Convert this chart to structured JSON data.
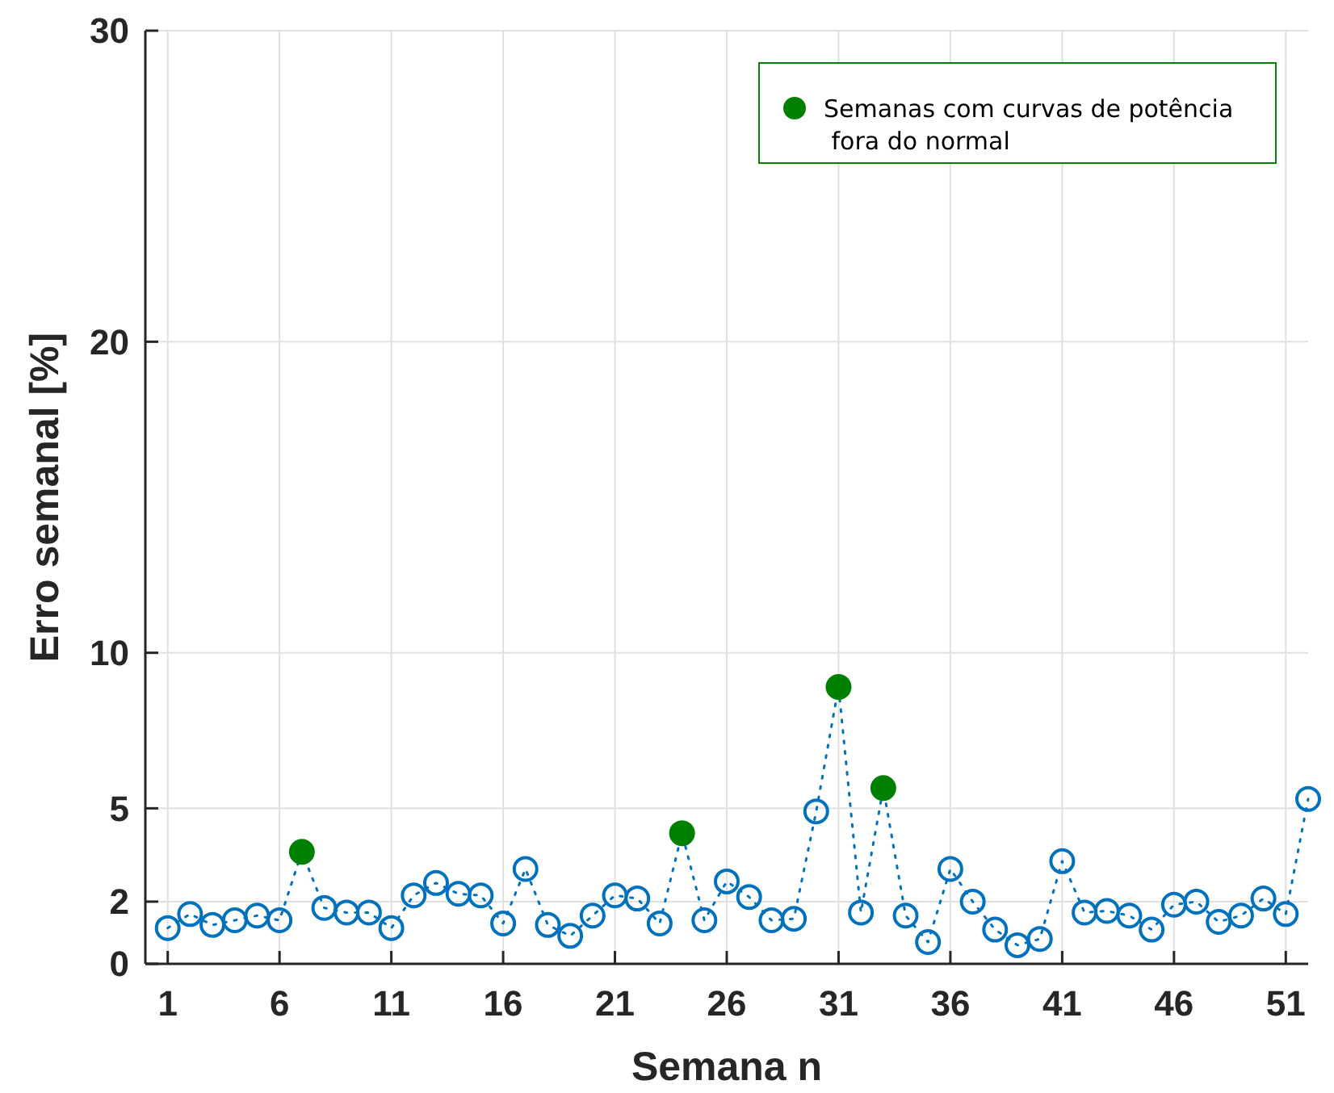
{
  "chart_data": {
    "type": "line",
    "xlabel": "Semana n",
    "ylabel": "Erro semanal [%]",
    "xlim": [
      0,
      52
    ],
    "xticks": [
      1,
      6,
      11,
      16,
      21,
      26,
      31,
      36,
      41,
      46,
      51
    ],
    "ylim": [
      0,
      30
    ],
    "yticks": [
      0,
      2,
      5,
      10,
      20,
      30
    ],
    "grid": true,
    "legend": "top right",
    "series": [
      {
        "color": "#0072bd",
        "marker": "none",
        "line_style": "dotted",
        "x": [
          1,
          2,
          3,
          4,
          5,
          6,
          7,
          8,
          9,
          10,
          11,
          12,
          13,
          14,
          15,
          16,
          17,
          18,
          19,
          20,
          21,
          22,
          23,
          24,
          25,
          26,
          27,
          28,
          29,
          30,
          31,
          32,
          33,
          34,
          35,
          36,
          37,
          38,
          39,
          40,
          41,
          42,
          43,
          44,
          45,
          46,
          47,
          48,
          49,
          50,
          51,
          52
        ],
        "values": [
          1.15,
          1.6,
          1.25,
          1.4,
          1.55,
          1.4,
          3.6,
          1.8,
          1.65,
          1.65,
          1.15,
          2.2,
          2.6,
          2.25,
          2.2,
          1.3,
          3.05,
          1.25,
          0.9,
          1.55,
          2.2,
          2.1,
          1.3,
          4.2,
          1.4,
          2.65,
          2.15,
          1.4,
          1.45,
          4.9,
          8.9,
          1.65,
          5.65,
          1.55,
          0.7,
          3.05,
          2.0,
          1.1,
          0.6,
          0.8,
          3.3,
          1.65,
          1.7,
          1.55,
          1.1,
          1.9,
          2.0,
          1.35,
          1.55,
          2.1,
          1.6,
          5.3
        ]
      },
      {
        "type": "scatter",
        "color": "#0072bd",
        "marker": "circle",
        "x": [
          1,
          2,
          3,
          4,
          5,
          6,
          8,
          9,
          10,
          11,
          12,
          13,
          14,
          15,
          16,
          17,
          18,
          19,
          20,
          21,
          22,
          23,
          25,
          26,
          27,
          28,
          29,
          30,
          32,
          34,
          35,
          36,
          37,
          38,
          39,
          40,
          41,
          42,
          43,
          44,
          45,
          46,
          47,
          48,
          49,
          50,
          51,
          52
        ],
        "values": [
          1.15,
          1.6,
          1.25,
          1.4,
          1.55,
          1.4,
          1.8,
          1.65,
          1.65,
          1.15,
          2.2,
          2.6,
          2.25,
          2.2,
          1.3,
          3.05,
          1.25,
          0.9,
          1.55,
          2.2,
          2.1,
          1.3,
          1.4,
          2.65,
          2.15,
          1.4,
          1.45,
          4.9,
          1.65,
          1.55,
          0.7,
          3.05,
          2.0,
          1.1,
          0.6,
          0.8,
          3.3,
          1.65,
          1.7,
          1.55,
          1.1,
          1.9,
          2.0,
          1.35,
          1.55,
          2.1,
          1.6,
          5.3
        ]
      },
      {
        "type": "scatter",
        "name": "Semanas com curvas de potência\n fora do normal",
        "color": "#008000",
        "marker": "circle",
        "x": [
          7,
          24,
          31,
          33
        ],
        "values": [
          3.6,
          4.2,
          8.9,
          5.65
        ]
      }
    ]
  }
}
